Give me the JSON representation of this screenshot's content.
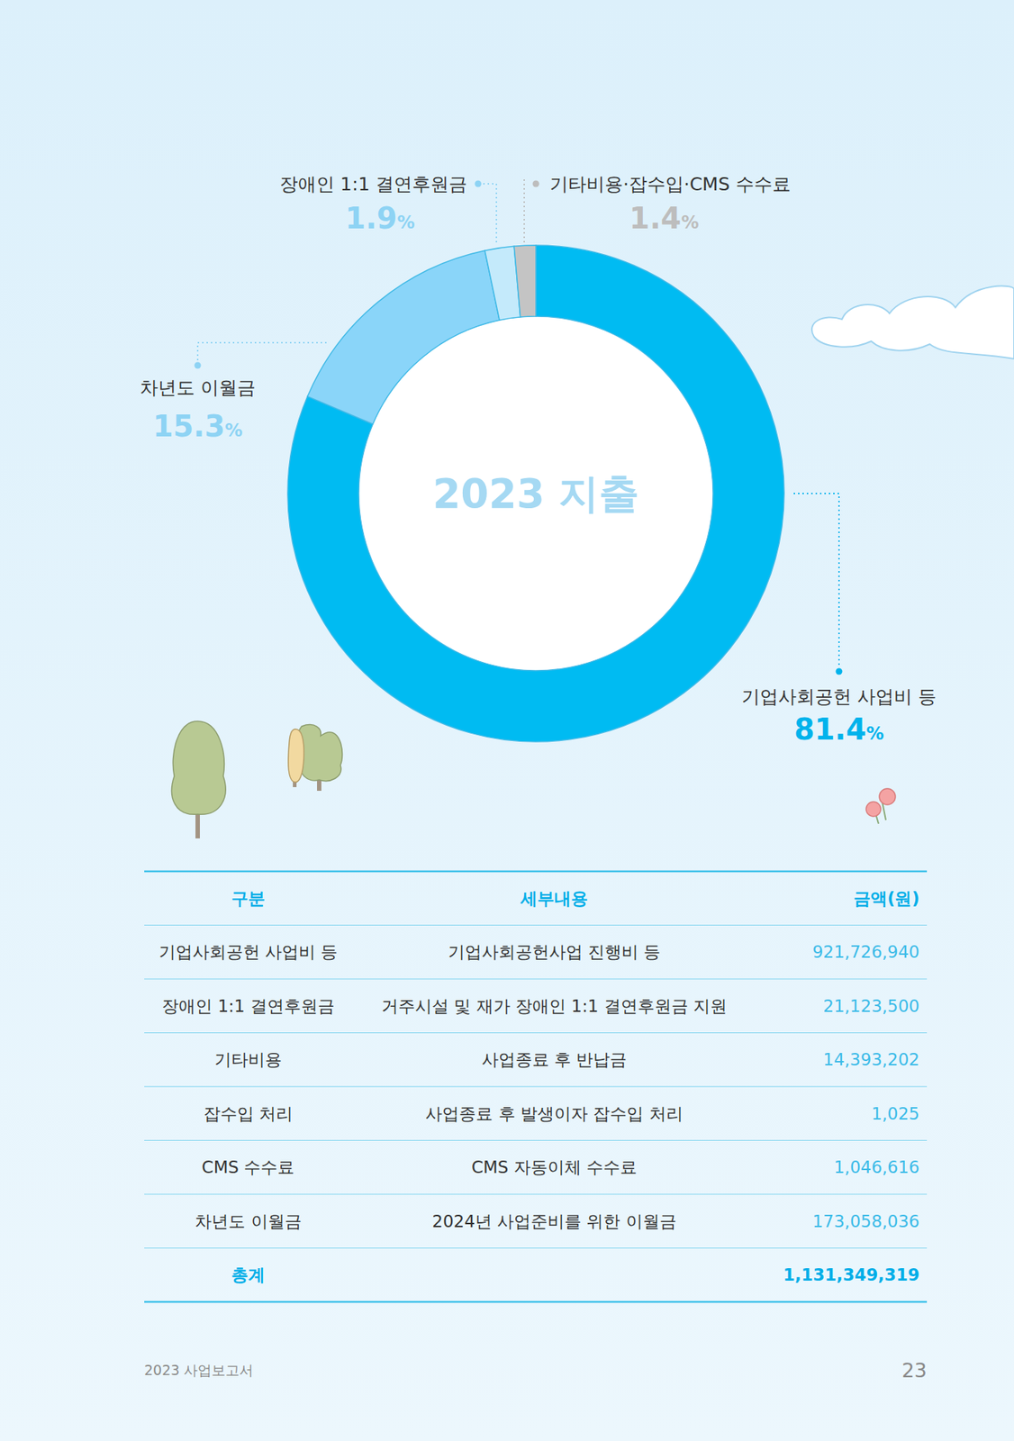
{
  "chart_data": {
    "type": "donut",
    "title": "2023 지출",
    "categories": [
      "기업사회공헌 사업비 등",
      "차년도 이월금",
      "장애인 1:1 결연후원금",
      "기타비용·잡수입·CMS 수수료"
    ],
    "values": [
      81.4,
      15.3,
      1.9,
      1.4
    ],
    "value_labels": [
      "81.4%",
      "15.3%",
      "1.9%",
      "1.4%"
    ],
    "colors": [
      "#00bbf2",
      "#8ad5f9",
      "#c4eafb",
      "#c4c4c4"
    ],
    "data_labels": true
  },
  "table": {
    "columns": [
      "구분",
      "세부내용",
      "금액(원)"
    ],
    "rows": [
      [
        "기업사회공헌 사업비 등",
        "기업사회공헌사업 진행비 등",
        "921,726,940"
      ],
      [
        "장애인 1:1 결연후원금",
        "거주시설 및 재가 장애인 1:1 결연후원금 지원",
        "21,123,500"
      ],
      [
        "기타비용",
        "사업종료 후 반납금",
        "14,393,202"
      ],
      [
        "잡수입 처리",
        "사업종료 후 발생이자 잡수입 처리",
        "1,025"
      ],
      [
        "CMS 수수료",
        "CMS 자동이체 수수료",
        "1,046,616"
      ],
      [
        "차년도 이월금",
        "2024년 사업준비를 위한 이월금",
        "173,058,036"
      ]
    ],
    "total": {
      "label": "총계",
      "amount": "1,131,349,319"
    }
  },
  "footer": {
    "report": "2023 사업보고서",
    "page": "23"
  }
}
